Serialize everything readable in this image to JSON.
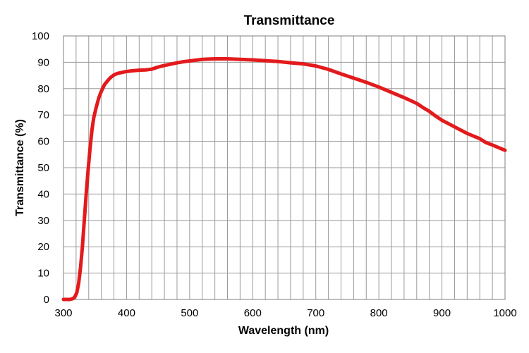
{
  "chart_data": {
    "type": "line",
    "title": "Transmittance",
    "xlabel": "Wavelength (nm)",
    "ylabel": "Transmittance (%)",
    "xlim": [
      300,
      1000
    ],
    "ylim": [
      0,
      100
    ],
    "x_ticks": [
      "300",
      "400",
      "500",
      "600",
      "700",
      "800",
      "900",
      "1000"
    ],
    "y_ticks": [
      "0",
      "10",
      "20",
      "30",
      "40",
      "50",
      "60",
      "70",
      "80",
      "90",
      "100"
    ],
    "x_tick_values": [
      300,
      400,
      500,
      600,
      700,
      800,
      900,
      1000
    ],
    "y_tick_values": [
      0,
      10,
      20,
      30,
      40,
      50,
      60,
      70,
      80,
      90,
      100
    ],
    "minor_x_gridlines": [
      320,
      340,
      360,
      380,
      420,
      440,
      460,
      480,
      520,
      540,
      560,
      580,
      620,
      640,
      660,
      680,
      720,
      740,
      760,
      780,
      820,
      840,
      860,
      880,
      920,
      940,
      960,
      980
    ],
    "grid": true,
    "legend": "none",
    "series": [
      {
        "color": "#e31a1c",
        "x": [
          300,
          310,
          315,
          318,
          321,
          324,
          327,
          330,
          333,
          336,
          339,
          342,
          345,
          348,
          352,
          356,
          360,
          365,
          370,
          375,
          380,
          385,
          390,
          400,
          410,
          420,
          430,
          440,
          450,
          460,
          470,
          480,
          490,
          500,
          510,
          520,
          530,
          540,
          550,
          560,
          570,
          580,
          590,
          600,
          620,
          640,
          660,
          680,
          700,
          720,
          740,
          760,
          780,
          800,
          820,
          840,
          860,
          870,
          880,
          890,
          900,
          920,
          940,
          960,
          970,
          980,
          990,
          1000
        ],
        "y": [
          0,
          0,
          0.3,
          1,
          2.5,
          6,
          12,
          20,
          30,
          40,
          49,
          57,
          64,
          69,
          73,
          76.5,
          79,
          81.5,
          83,
          84.3,
          85.2,
          85.7,
          86,
          86.5,
          86.8,
          87,
          87.1,
          87.4,
          88.2,
          88.8,
          89.3,
          89.8,
          90.2,
          90.5,
          90.8,
          91.1,
          91.2,
          91.3,
          91.3,
          91.3,
          91.2,
          91.1,
          91,
          90.9,
          90.6,
          90.3,
          89.8,
          89.4,
          88.6,
          87.3,
          85.6,
          84,
          82.4,
          80.6,
          78.6,
          76.6,
          74.4,
          72.8,
          71.4,
          69.6,
          68,
          65.5,
          63,
          61,
          59.5,
          58.6,
          57.6,
          56.6
        ]
      }
    ]
  }
}
